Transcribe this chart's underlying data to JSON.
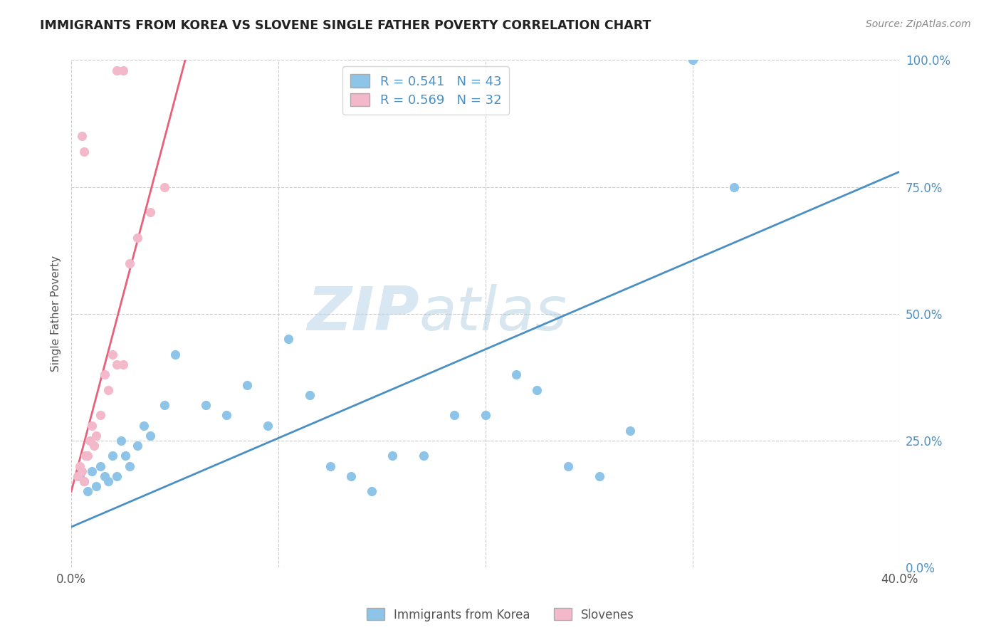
{
  "title": "IMMIGRANTS FROM KOREA VS SLOVENE SINGLE FATHER POVERTY CORRELATION CHART",
  "source": "Source: ZipAtlas.com",
  "ylabel": "Single Father Poverty",
  "yticks_labels": [
    "0.0%",
    "25.0%",
    "50.0%",
    "75.0%",
    "100.0%"
  ],
  "ytick_vals": [
    0,
    25,
    50,
    75,
    100
  ],
  "xlim": [
    0,
    40
  ],
  "ylim": [
    0,
    100
  ],
  "legend_blue_R": "R = 0.541",
  "legend_blue_N": "N = 43",
  "legend_pink_R": "R = 0.569",
  "legend_pink_N": "N = 32",
  "legend_label_blue": "Immigrants from Korea",
  "legend_label_pink": "Slovenes",
  "blue_color": "#8ec4e8",
  "pink_color": "#f4b8cb",
  "blue_line_color": "#4a90c4",
  "pink_line_color": "#e8607a",
  "watermark_zip": "ZIP",
  "watermark_atlas": "atlas",
  "blue_scatter_x": [
    0.4,
    0.6,
    0.8,
    1.0,
    1.2,
    1.4,
    1.6,
    1.8,
    2.0,
    2.2,
    2.4,
    2.6,
    2.8,
    3.2,
    3.5,
    3.8,
    4.5,
    5.0,
    6.5,
    7.5,
    8.5,
    9.5,
    10.5,
    11.5,
    12.5,
    13.5,
    14.5,
    15.5,
    17.0,
    18.5,
    20.0,
    21.5,
    22.5,
    24.0,
    25.5,
    27.0,
    30.0,
    32.0
  ],
  "blue_scatter_y": [
    18,
    17,
    15,
    19,
    16,
    20,
    18,
    17,
    22,
    18,
    25,
    22,
    20,
    24,
    28,
    26,
    32,
    42,
    32,
    30,
    36,
    28,
    45,
    34,
    20,
    18,
    15,
    22,
    22,
    30,
    30,
    38,
    35,
    20,
    18,
    27,
    100,
    75
  ],
  "pink_scatter_x": [
    0.3,
    0.4,
    0.5,
    0.6,
    0.7,
    0.8,
    0.9,
    1.0,
    1.1,
    1.2,
    1.4,
    1.6,
    1.8,
    2.0,
    2.2,
    2.5,
    2.8,
    3.2,
    3.8,
    4.5,
    2.2,
    2.5,
    0.5,
    0.6
  ],
  "pink_scatter_y": [
    18,
    20,
    19,
    17,
    22,
    22,
    25,
    28,
    24,
    26,
    30,
    38,
    35,
    42,
    40,
    40,
    60,
    65,
    70,
    75,
    98,
    98,
    85,
    82
  ],
  "blue_line_x": [
    0,
    40
  ],
  "blue_line_y": [
    8,
    78
  ],
  "pink_line_x": [
    0.0,
    5.5
  ],
  "pink_line_y": [
    15,
    100
  ]
}
